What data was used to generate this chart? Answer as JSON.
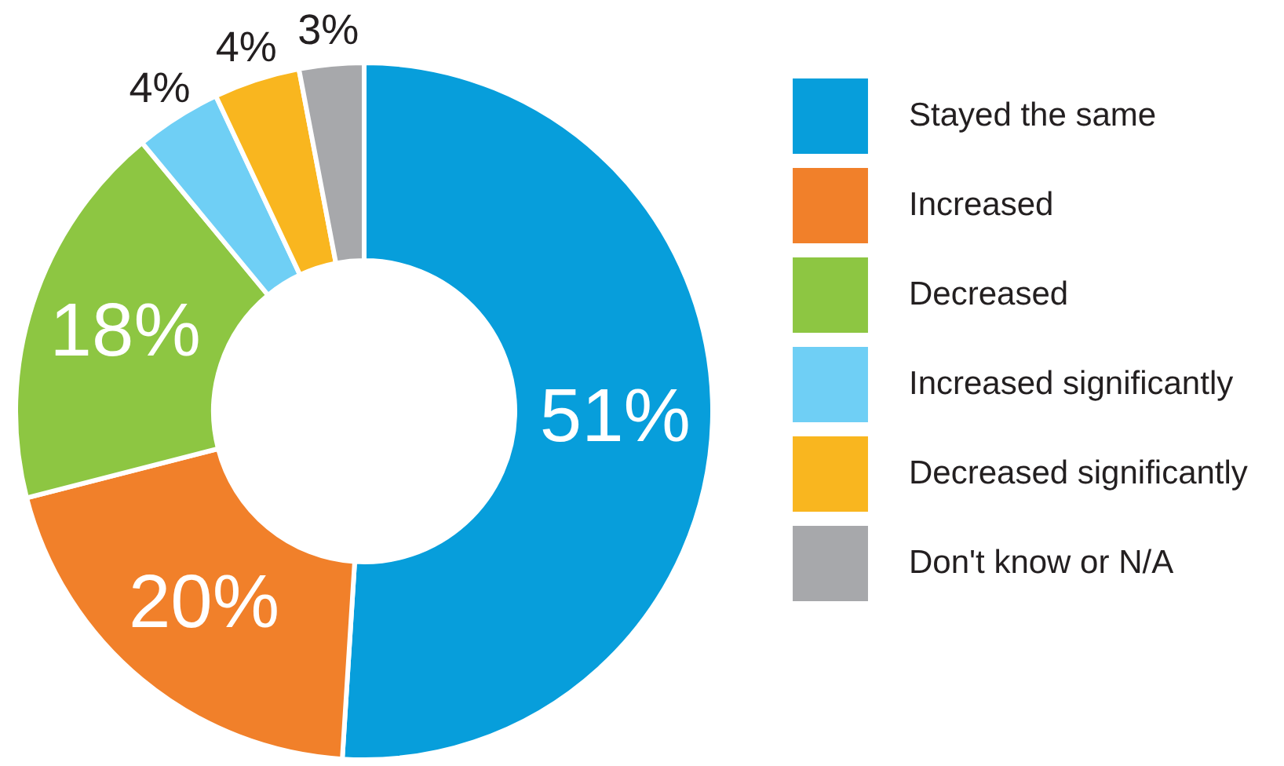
{
  "chart_data": {
    "type": "donut",
    "categories": [
      "Stayed the same",
      "Increased",
      "Decreased",
      "Increased significantly",
      "Decreased significantly",
      "Don't know or N/A"
    ],
    "values": [
      51,
      20,
      18,
      4,
      4,
      3
    ],
    "colors": [
      "#079edb",
      "#f1802a",
      "#8dc642",
      "#6fcff5",
      "#f9b61f",
      "#a7a8ab"
    ],
    "value_labels": [
      "51%",
      "20%",
      "18%",
      "4%",
      "4%",
      "3%"
    ],
    "legend": "right"
  }
}
